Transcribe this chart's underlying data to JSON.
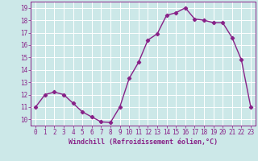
{
  "x": [
    0,
    1,
    2,
    3,
    4,
    5,
    6,
    7,
    8,
    9,
    10,
    11,
    12,
    13,
    14,
    15,
    16,
    17,
    18,
    19,
    20,
    21,
    22,
    23
  ],
  "y": [
    11,
    12,
    12.2,
    12,
    11.3,
    10.6,
    10.2,
    9.8,
    9.75,
    11,
    13.3,
    14.6,
    16.4,
    16.9,
    18.4,
    18.6,
    19.0,
    18.1,
    18.0,
    17.8,
    17.8,
    16.6,
    14.8,
    11
  ],
  "line_color": "#882288",
  "marker": "D",
  "marker_size": 2.2,
  "line_width": 1.0,
  "bg_color": "#cce8e8",
  "grid_color": "#ffffff",
  "xlabel": "Windchill (Refroidissement éolien,°C)",
  "xlabel_color": "#882288",
  "xlabel_fontsize": 6.0,
  "tick_color": "#882288",
  "tick_fontsize": 5.5,
  "ylim": [
    9.5,
    19.5
  ],
  "xlim": [
    -0.5,
    23.5
  ],
  "yticks": [
    10,
    11,
    12,
    13,
    14,
    15,
    16,
    17,
    18,
    19
  ],
  "xticks": [
    0,
    1,
    2,
    3,
    4,
    5,
    6,
    7,
    8,
    9,
    10,
    11,
    12,
    13,
    14,
    15,
    16,
    17,
    18,
    19,
    20,
    21,
    22,
    23
  ]
}
